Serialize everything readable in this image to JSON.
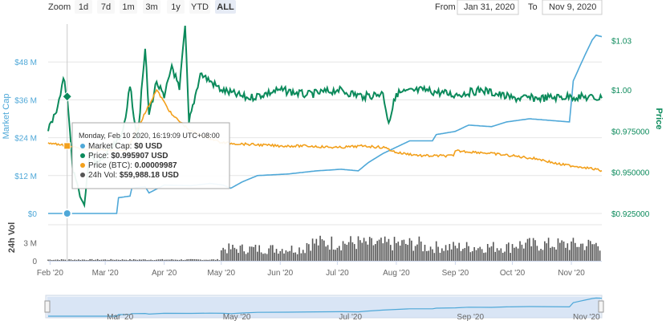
{
  "controls": {
    "zoom_label": "Zoom",
    "zoom_buttons": [
      "1d",
      "7d",
      "1m",
      "3m",
      "1y",
      "YTD",
      "ALL"
    ],
    "active_zoom": "ALL",
    "from_label": "From",
    "from_value": "Jan 31, 2020",
    "to_label": "To",
    "to_value": "Nov 9, 2020"
  },
  "tooltip": {
    "header": "Monday, Feb 10 2020, 16:19:09 UTC+08:00",
    "rows": [
      {
        "label": "Market Cap:",
        "value": "$0 USD",
        "color": "#4fa8d8"
      },
      {
        "label": "Price:",
        "value": "$0.995907 USD",
        "color": "#0b8a5b"
      },
      {
        "label": "Price (BTC):",
        "value": "0.00009987",
        "color": "#f2a01c"
      },
      {
        "label": "24h Vol:",
        "value": "$59,988.18 USD",
        "color": "#555555"
      }
    ]
  },
  "colors": {
    "market_cap": "#4fa8d8",
    "price": "#0b8a5b",
    "price_btc": "#f2a01c",
    "volume": "#555555"
  },
  "chart_data": {
    "type": "line",
    "x_tick_labels": [
      "Feb '20",
      "Mar '20",
      "Apr '20",
      "May '20",
      "Jun '20",
      "Jul '20",
      "Aug '20",
      "Sep '20",
      "Oct '20",
      "Nov '20"
    ],
    "navigator_tick_labels": [
      "Mar '20",
      "May '20",
      "Jul '20",
      "Sep '20",
      "Nov '20"
    ],
    "left_axis": {
      "title": "Market Cap",
      "ticks": [
        "$0",
        "$12 M",
        "$24 M",
        "$36 M",
        "$48 M"
      ],
      "range": [
        0,
        60000000
      ]
    },
    "right_axis": {
      "title": "Price",
      "ticks": [
        "$0.925000",
        "$0.950000",
        "$0.975000",
        "$1.00",
        "$1.03"
      ],
      "range": [
        0.925,
        1.04
      ]
    },
    "volume_axis": {
      "title": "24h Vol",
      "ticks": [
        "0",
        "3 M"
      ],
      "range": [
        0,
        6000000
      ]
    },
    "series": [
      {
        "name": "Market Cap",
        "axis": "left",
        "points": [
          [
            "2020-01-31",
            0
          ],
          [
            "2020-02-10",
            0
          ],
          [
            "2020-02-29",
            0
          ],
          [
            "2020-03-07",
            0
          ],
          [
            "2020-03-08",
            5000000
          ],
          [
            "2020-03-14",
            5500000
          ],
          [
            "2020-03-15",
            8000000
          ],
          [
            "2020-03-22",
            8500000
          ],
          [
            "2020-03-24",
            6500000
          ],
          [
            "2020-04-01",
            9000000
          ],
          [
            "2020-04-15",
            8800000
          ],
          [
            "2020-04-25",
            9500000
          ],
          [
            "2020-05-02",
            9000000
          ],
          [
            "2020-05-06",
            8000000
          ],
          [
            "2020-05-12",
            10000000
          ],
          [
            "2020-05-20",
            12000000
          ],
          [
            "2020-06-05",
            12500000
          ],
          [
            "2020-06-20",
            13500000
          ],
          [
            "2020-07-03",
            14000000
          ],
          [
            "2020-07-12",
            13500000
          ],
          [
            "2020-07-17",
            16000000
          ],
          [
            "2020-07-25",
            19000000
          ],
          [
            "2020-08-08",
            23000000
          ],
          [
            "2020-08-20",
            23000000
          ],
          [
            "2020-08-22",
            25000000
          ],
          [
            "2020-09-01",
            26000000
          ],
          [
            "2020-09-08",
            28000000
          ],
          [
            "2020-09-20",
            27500000
          ],
          [
            "2020-09-28",
            29000000
          ],
          [
            "2020-10-10",
            30000000
          ],
          [
            "2020-10-31",
            29000000
          ],
          [
            "2020-11-02",
            42000000
          ],
          [
            "2020-11-05",
            46000000
          ],
          [
            "2020-11-08",
            50000000
          ],
          [
            "2020-11-12",
            55000000
          ],
          [
            "2020-11-14",
            56500000
          ],
          [
            "2020-11-17",
            56000000
          ]
        ]
      },
      {
        "name": "Price",
        "axis": "right",
        "points": [
          [
            "2020-01-31",
            0.975
          ],
          [
            "2020-02-03",
            0.985
          ],
          [
            "2020-02-05",
            0.99
          ],
          [
            "2020-02-08",
            1.007
          ],
          [
            "2020-02-10",
            0.9959
          ],
          [
            "2020-02-13",
            0.95
          ],
          [
            "2020-02-16",
            0.94
          ],
          [
            "2020-02-19",
            0.93
          ],
          [
            "2020-02-22",
            0.962
          ],
          [
            "2020-02-25",
            0.955
          ],
          [
            "2020-03-01",
            0.96
          ],
          [
            "2020-03-05",
            0.965
          ],
          [
            "2020-03-09",
            0.97
          ],
          [
            "2020-03-11",
            0.98
          ],
          [
            "2020-03-14",
            1.002
          ],
          [
            "2020-03-18",
            0.97
          ],
          [
            "2020-03-22",
            1.025
          ],
          [
            "2020-03-24",
            0.985
          ],
          [
            "2020-03-28",
            1.005
          ],
          [
            "2020-04-01",
            0.995
          ],
          [
            "2020-04-05",
            1.015
          ],
          [
            "2020-04-09",
            1.0
          ],
          [
            "2020-04-12",
            1.039
          ],
          [
            "2020-04-14",
            0.98
          ],
          [
            "2020-04-20",
            1.01
          ],
          [
            "2020-05-01",
            1.0
          ],
          [
            "2020-05-15",
            0.995
          ],
          [
            "2020-06-01",
            1.0
          ],
          [
            "2020-06-15",
            0.997
          ],
          [
            "2020-07-01",
            1.0
          ],
          [
            "2020-07-15",
            0.996
          ],
          [
            "2020-07-25",
            0.998
          ],
          [
            "2020-07-28",
            0.98
          ],
          [
            "2020-08-01",
            0.998
          ],
          [
            "2020-08-15",
            1.0
          ],
          [
            "2020-09-01",
            0.997
          ],
          [
            "2020-09-15",
            1.0
          ],
          [
            "2020-10-01",
            0.995
          ],
          [
            "2020-10-15",
            0.995
          ],
          [
            "2020-11-01",
            0.996
          ],
          [
            "2020-11-17",
            0.995
          ]
        ]
      },
      {
        "name": "Price (BTC)",
        "axis": "right",
        "points": [
          [
            "2020-01-31",
            0.968
          ],
          [
            "2020-02-10",
            0.966
          ],
          [
            "2020-02-20",
            0.964
          ],
          [
            "2020-03-12",
            0.963
          ],
          [
            "2020-03-28",
            1.0
          ],
          [
            "2020-04-05",
            0.985
          ],
          [
            "2020-04-15",
            0.975
          ],
          [
            "2020-05-01",
            0.968
          ],
          [
            "2020-05-15",
            0.967
          ],
          [
            "2020-06-01",
            0.966
          ],
          [
            "2020-06-15",
            0.966
          ],
          [
            "2020-07-01",
            0.965
          ],
          [
            "2020-07-15",
            0.966
          ],
          [
            "2020-07-26",
            0.965
          ],
          [
            "2020-08-01",
            0.962
          ],
          [
            "2020-08-15",
            0.96
          ],
          [
            "2020-08-31",
            0.96
          ],
          [
            "2020-09-01",
            0.963
          ],
          [
            "2020-09-15",
            0.962
          ],
          [
            "2020-10-01",
            0.96
          ],
          [
            "2020-10-15",
            0.958
          ],
          [
            "2020-10-25",
            0.955
          ],
          [
            "2020-11-08",
            0.953
          ],
          [
            "2020-11-17",
            0.951
          ]
        ]
      }
    ],
    "volume_pattern": [
      {
        "from": "2020-01-31",
        "to": "2020-05-01",
        "level": 200000
      },
      {
        "from": "2020-05-01",
        "to": "2020-06-15",
        "level": 2000000
      },
      {
        "from": "2020-06-15",
        "to": "2020-07-15",
        "level": 3000000
      },
      {
        "from": "2020-07-15",
        "to": "2020-08-15",
        "level": 2800000
      },
      {
        "from": "2020-08-15",
        "to": "2020-10-01",
        "level": 2300000
      },
      {
        "from": "2020-10-01",
        "to": "2020-11-17",
        "level": 2700000
      }
    ],
    "highlighted_point": {
      "date": "2020-02-10"
    },
    "legend": "none"
  }
}
